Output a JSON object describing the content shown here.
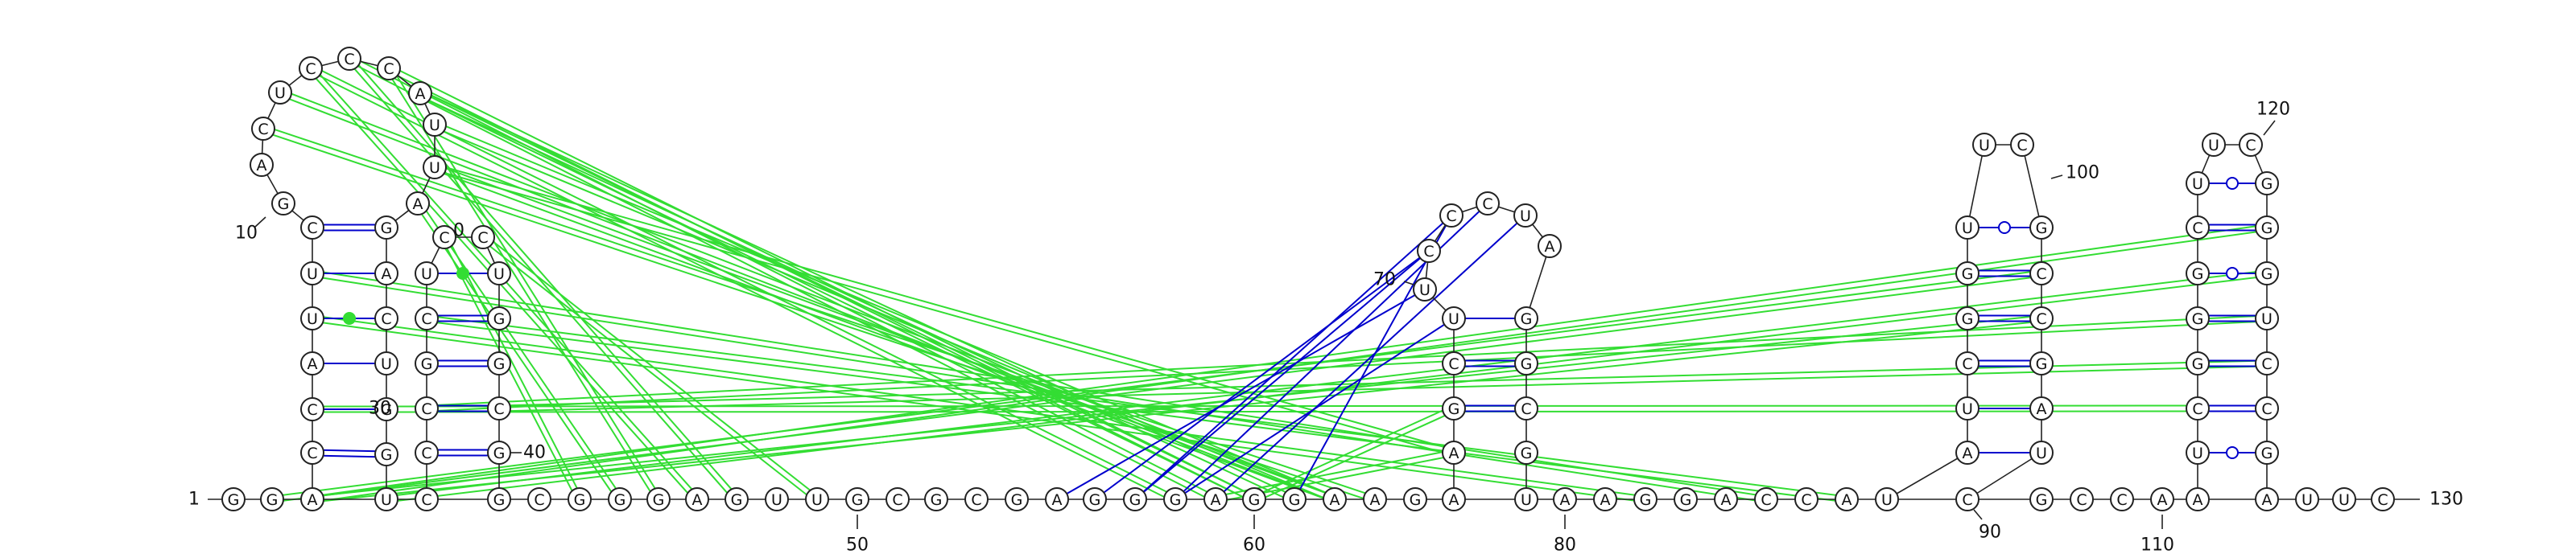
{
  "diagram": {
    "type": "rna-secondary-structure-arc-diagram",
    "colors": {
      "canonical_pair": "#0000cc",
      "long_range_interaction": "#33dd33",
      "wobble_marker": "#33dd33",
      "backbone": "#222222"
    },
    "bottom_sequence": {
      "first_label": "1",
      "last_label": "130",
      "letters": [
        "G",
        "G",
        "A",
        "U",
        "C",
        "G",
        "C",
        "G",
        "G",
        "G",
        "A",
        "G",
        "U",
        "U",
        "G",
        "C",
        "G",
        "C",
        "G",
        "A",
        "G",
        "G",
        "G",
        "A",
        "G",
        "G",
        "A",
        "A",
        "G",
        "A",
        "U",
        "A",
        "A",
        "G",
        "G",
        "A",
        "C",
        "C",
        "A",
        "U",
        "C",
        "G",
        "C",
        "C",
        "A",
        "A",
        "A",
        "U",
        "U",
        "C"
      ],
      "tick_labels": [
        "50",
        "60",
        "80",
        "90",
        "110"
      ]
    },
    "hairpins": [
      {
        "name": "hairpin-1",
        "left_stem": [
          "C",
          "C",
          "A",
          "U",
          "U",
          "C"
        ],
        "right_stem": [
          "G",
          "G",
          "U",
          "C",
          "A",
          "G"
        ],
        "loop": [
          "G",
          "A",
          "C",
          "U",
          "C",
          "C",
          "C",
          "A",
          "U",
          "U",
          "A"
        ],
        "labels": [
          "10",
          "30"
        ]
      },
      {
        "name": "hairpin-2",
        "left_stem": [
          "C",
          "C",
          "G",
          "C",
          "U"
        ],
        "right_stem": [
          "G",
          "C",
          "G",
          "G",
          "U"
        ],
        "loop": [
          "C",
          "C"
        ],
        "labels": [
          "0",
          "40"
        ]
      },
      {
        "name": "hairpin-3",
        "left_stem": [
          "A",
          "G",
          "C",
          "U"
        ],
        "right_stem": [
          "G",
          "C",
          "G",
          "G"
        ],
        "loop": [
          "U",
          "C",
          "C",
          "C",
          "U",
          "A"
        ],
        "labels": [
          "70"
        ]
      },
      {
        "name": "hairpin-4",
        "left_stem": [
          "A",
          "U",
          "C",
          "G",
          "G",
          "U"
        ],
        "right_stem": [
          "U",
          "A",
          "G",
          "C",
          "C",
          "G"
        ],
        "loop": [
          "U",
          "C"
        ],
        "labels": [
          "100"
        ]
      },
      {
        "name": "hairpin-5",
        "left_stem": [
          "U",
          "C",
          "G",
          "G",
          "G",
          "C",
          "U"
        ],
        "right_stem": [
          "G",
          "C",
          "C",
          "U",
          "G",
          "G",
          "G"
        ],
        "loop": [
          "U",
          "C"
        ],
        "labels": [
          "120"
        ]
      }
    ]
  }
}
